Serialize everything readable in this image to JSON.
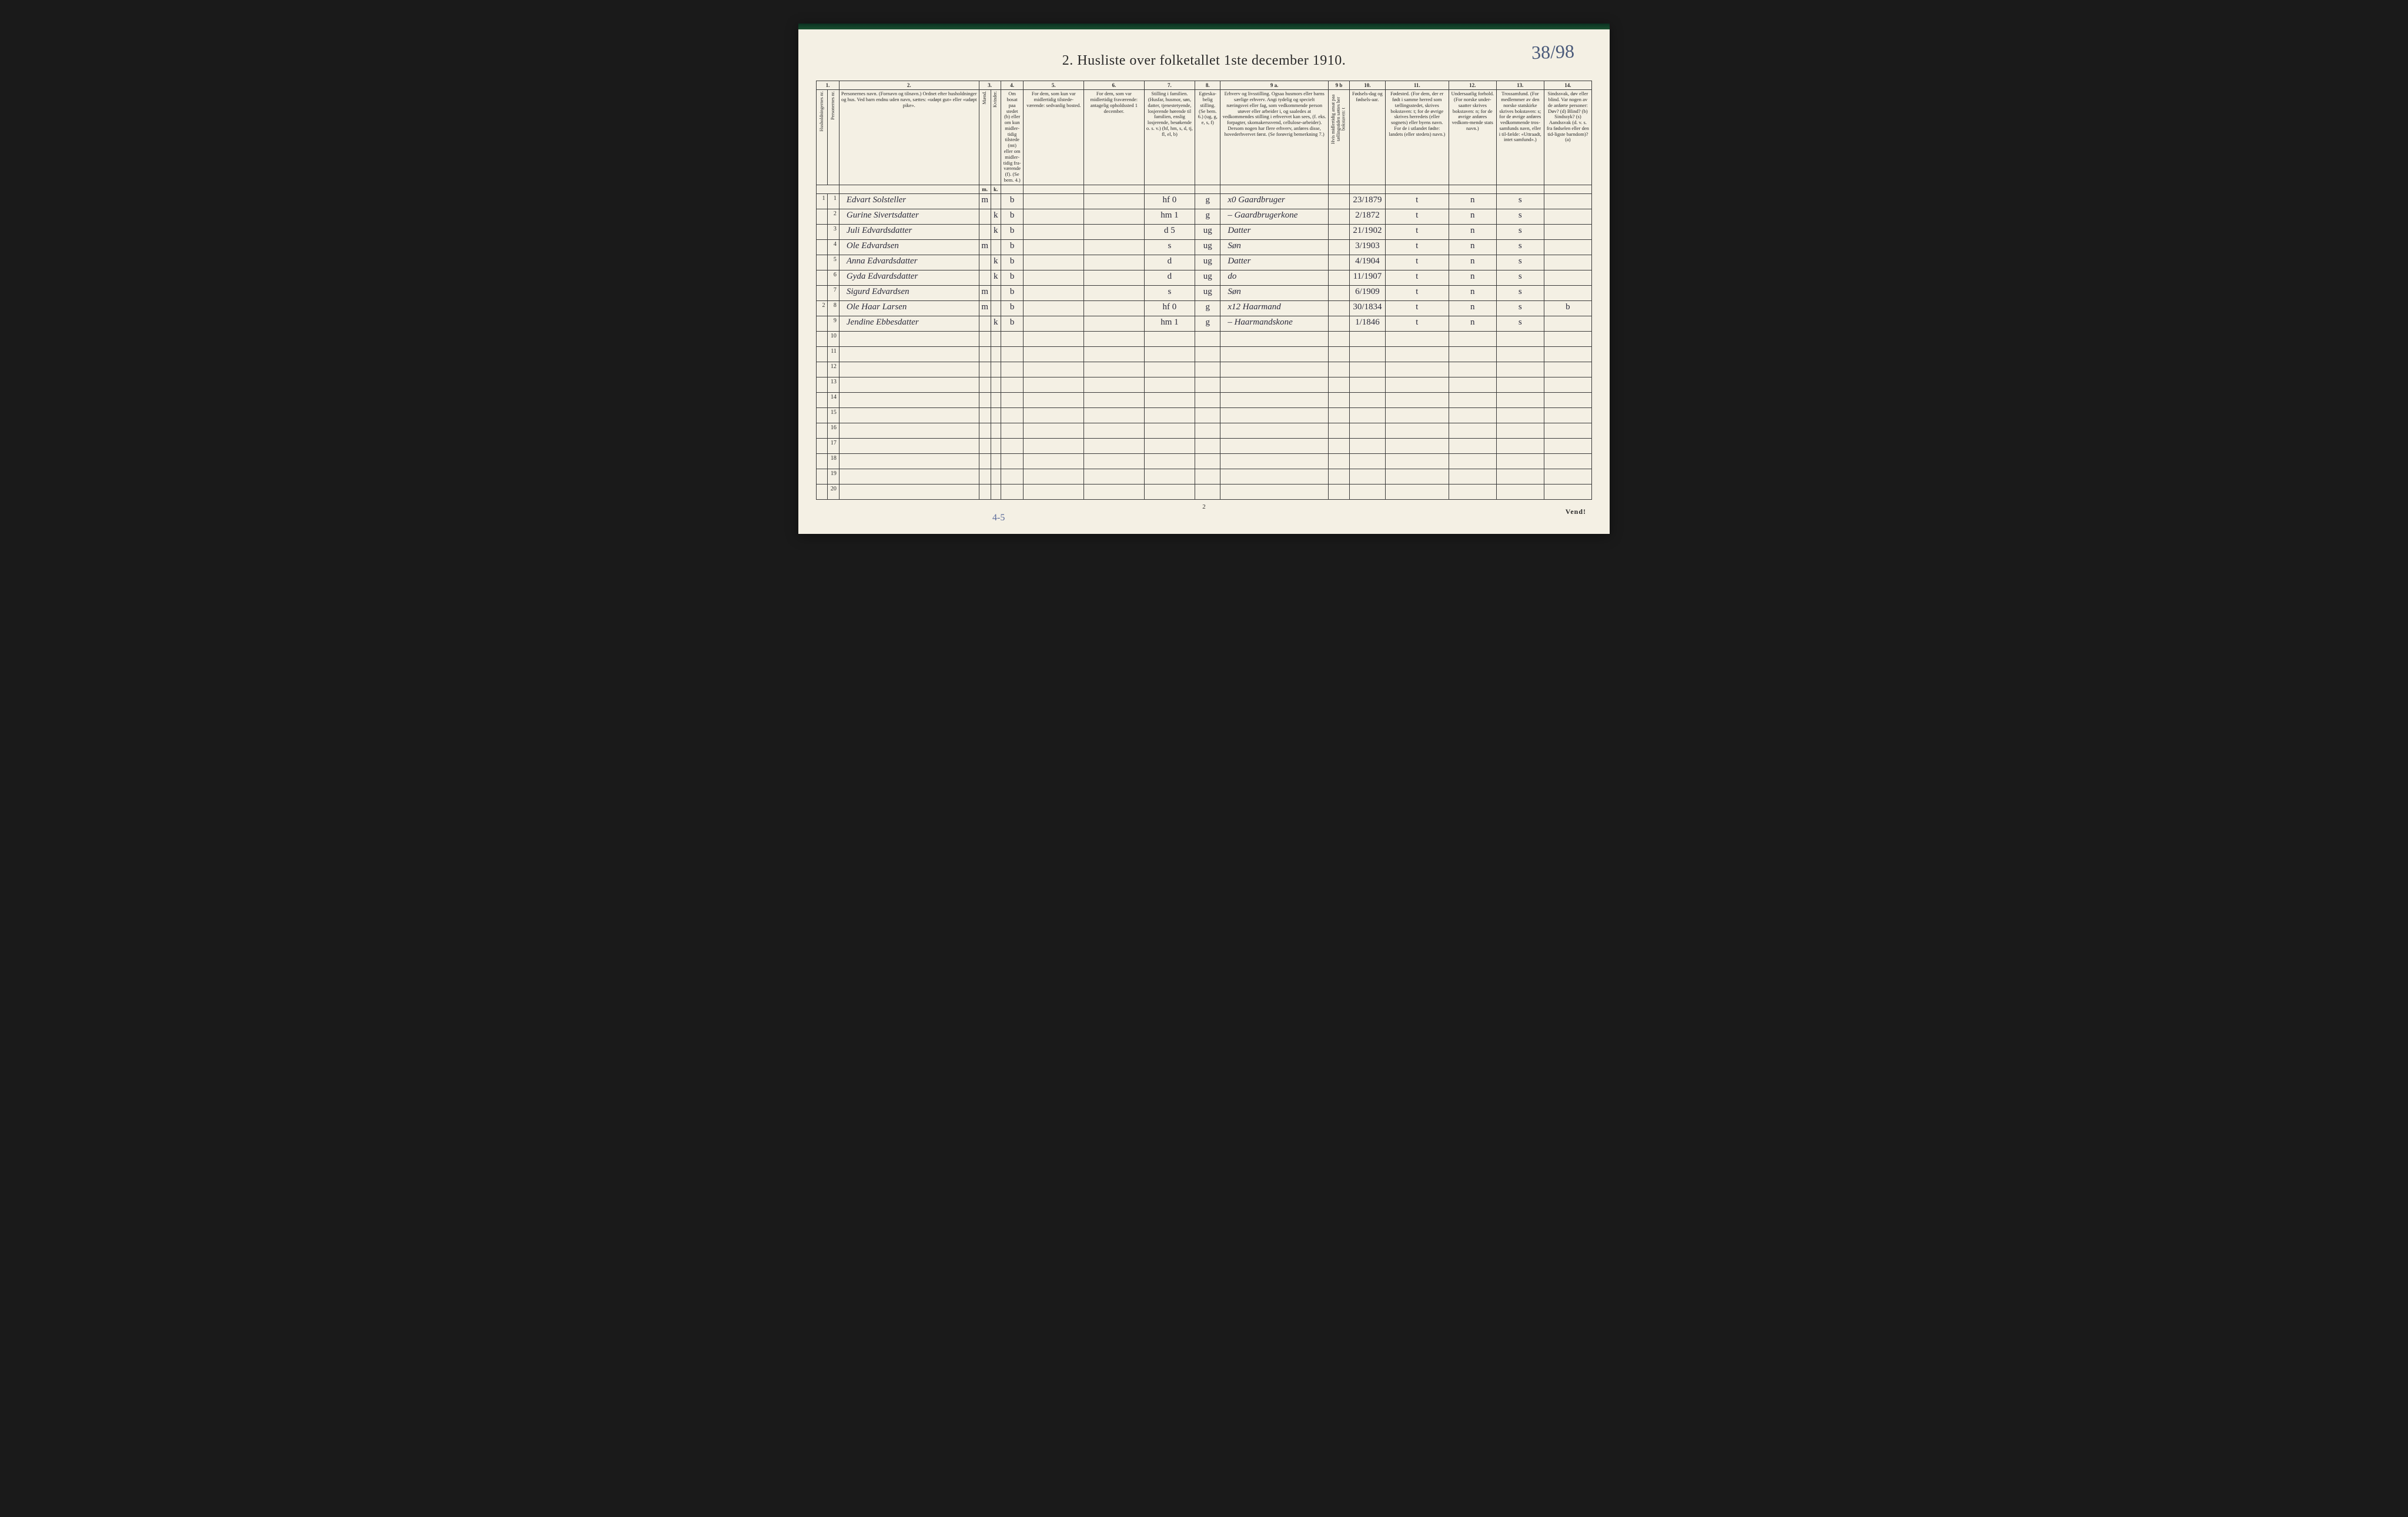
{
  "annotation": "38/98",
  "title": "2.  Husliste over folketallet 1ste december 1910.",
  "footer_page": "2",
  "footer_note": "4-5",
  "vend": "Vend!",
  "col_numbers": [
    "1.",
    "2.",
    "3.",
    "4.",
    "5.",
    "6.",
    "7.",
    "8.",
    "9 a.",
    "9 b",
    "10.",
    "11.",
    "12.",
    "13.",
    "14."
  ],
  "headers": {
    "h1a": "Husholdningernes nr.",
    "h1b": "Personernes nr.",
    "h2": "Personernes navn.\n(Fornavn og tilnavn.)\nOrdnet efter husholdninger og hus.\nVed barn endnu uden navn, sættes: «udøpt gut» eller «udøpt pike».",
    "h3": "Kjøn.",
    "h3a": "Mænd.",
    "h3b": "Kvinder.",
    "h4": "Om bosat paa stedet (b) eller om kun midler-tidig tilstede (mt) eller om midler-tidig fra-værende (f). (Se bem. 4.)",
    "h5": "For dem, som kun var midlertidig tilstede-værende:\nsedvanlig bosted.",
    "h6": "For dem, som var midlertidig fraværende:\nantagelig opholdssted 1 december.",
    "h7": "Stilling i familien.\n(Husfar, husmor, søn, datter, tjenestetyende, losjerende hørende til familien, enslig losjerende, besøkende o. s. v.)\n(hf, hm, s, d, tj, fl, el, b)",
    "h8": "Egteska-belig stilling.\n(Se bem. 6.)\n(ug, g, e, s, f)",
    "h9a": "Erhverv og livsstilling.\nOgsaa husmors eller barns særlige erhverv. Angi tydelig og specielt næringsvei eller fag, som vedkommende person utøver eller arbeider i, og saaledes at vedkommendes stilling i erhvervet kan sees, (f. eks. forpagter, skomakerssvend, cellulose-arbeider). Dersom nogen har flere erhverv, anføres disse, hovederhvervet først.\n(Se forøvrig bemerkning 7.)",
    "h9b": "Hvis midlertidig ansat paa tællingstiden sættes her bokstaven: t",
    "h10": "Fødsels-dag og fødsels-aar.",
    "h11": "Fødested.\n(For dem, der er født i samme herred som tællingsstedet, skrives bokstaven: t; for de øvrige skrives herredets (eller sognets) eller byens navn. For de i utlandet fødte: landets (eller stedets) navn.)",
    "h12": "Undersaatlig forhold.\n(For norske under-saatter skrives bokstaven: n; for de øvrige anføres vedkom-mende stats navn.)",
    "h13": "Trossamfund.\n(For medlemmer av den norske statskirke skrives bokstaven: s; for de øvrige anføres vedkommende tros-samfunds navn, eller i til-fælde: «Uttraadt, intet samfund».)",
    "h14": "Sindssvak, døv eller blind.\nVar nogen av de anførte personer:\nDøv?          (d)\nBlind?        (b)\nSindssyk?   (s)\nAandssvak (d. v. s. fra fødselen eller den tid-ligste barndom)? (a)"
  },
  "rows": [
    {
      "hh": "1",
      "p": "1",
      "name": "Edvart Solsteller",
      "m": "m",
      "k": "",
      "res": "b",
      "c5": "",
      "c6": "",
      "fam": "hf   0",
      "eg": "g",
      "occ": "x0   Gaardbruger",
      "c9b": "",
      "date": "23/1879",
      "place": "t",
      "nat": "n",
      "rel": "s",
      "c14": ""
    },
    {
      "hh": "",
      "p": "2",
      "name": "Gurine Sivertsdatter",
      "m": "",
      "k": "k",
      "res": "b",
      "c5": "",
      "c6": "",
      "fam": "hm   1",
      "eg": "g",
      "occ": "–   Gaardbrugerkone",
      "c9b": "",
      "date": "2/1872",
      "place": "t",
      "nat": "n",
      "rel": "s",
      "c14": ""
    },
    {
      "hh": "",
      "p": "3",
      "name": "Juli Edvardsdatter",
      "m": "",
      "k": "k",
      "res": "b",
      "c5": "",
      "c6": "",
      "fam": "d   5",
      "eg": "ug",
      "occ": "Datter",
      "c9b": "",
      "date": "21/1902",
      "place": "t",
      "nat": "n",
      "rel": "s",
      "c14": ""
    },
    {
      "hh": "",
      "p": "4",
      "name": "Ole Edvardsen",
      "m": "m",
      "k": "",
      "res": "b",
      "c5": "",
      "c6": "",
      "fam": "s",
      "eg": "ug",
      "occ": "Søn",
      "c9b": "",
      "date": "3/1903",
      "place": "t",
      "nat": "n",
      "rel": "s",
      "c14": ""
    },
    {
      "hh": "",
      "p": "5",
      "name": "Anna Edvardsdatter",
      "m": "",
      "k": "k",
      "res": "b",
      "c5": "",
      "c6": "",
      "fam": "d",
      "eg": "ug",
      "occ": "Datter",
      "c9b": "",
      "date": "4/1904",
      "place": "t",
      "nat": "n",
      "rel": "s",
      "c14": ""
    },
    {
      "hh": "",
      "p": "6",
      "name": "Gyda Edvardsdatter",
      "m": "",
      "k": "k",
      "res": "b",
      "c5": "",
      "c6": "",
      "fam": "d",
      "eg": "ug",
      "occ": "do",
      "c9b": "",
      "date": "11/1907",
      "place": "t",
      "nat": "n",
      "rel": "s",
      "c14": ""
    },
    {
      "hh": "",
      "p": "7",
      "name": "Sigurd Edvardsen",
      "m": "m",
      "k": "",
      "res": "b",
      "c5": "",
      "c6": "",
      "fam": "s",
      "eg": "ug",
      "occ": "Søn",
      "c9b": "",
      "date": "6/1909",
      "place": "t",
      "nat": "n",
      "rel": "s",
      "c14": ""
    },
    {
      "hh": "2",
      "p": "8",
      "name": "Ole Haar Larsen",
      "m": "m",
      "k": "",
      "res": "b",
      "c5": "",
      "c6": "",
      "fam": "hf   0",
      "eg": "g",
      "occ": "x12   Haarmand",
      "c9b": "",
      "date": "30/1834",
      "place": "t",
      "nat": "n",
      "rel": "s",
      "c14": "b"
    },
    {
      "hh": "",
      "p": "9",
      "name": "Jendine Ebbesdatter",
      "m": "",
      "k": "k",
      "res": "b",
      "c5": "",
      "c6": "",
      "fam": "hm   1",
      "eg": "g",
      "occ": "–   Haarmandskone",
      "c9b": "",
      "date": "1/1846",
      "place": "t",
      "nat": "n",
      "rel": "s",
      "c14": ""
    }
  ],
  "empty_rows": [
    10,
    11,
    12,
    13,
    14,
    15,
    16,
    17,
    18,
    19,
    20
  ],
  "colors": {
    "paper": "#f4f0e4",
    "ink": "#2a2a2a",
    "handwriting": "#2a2a3a",
    "annotation": "#4a5a7a",
    "border": "#3a3a3a"
  }
}
